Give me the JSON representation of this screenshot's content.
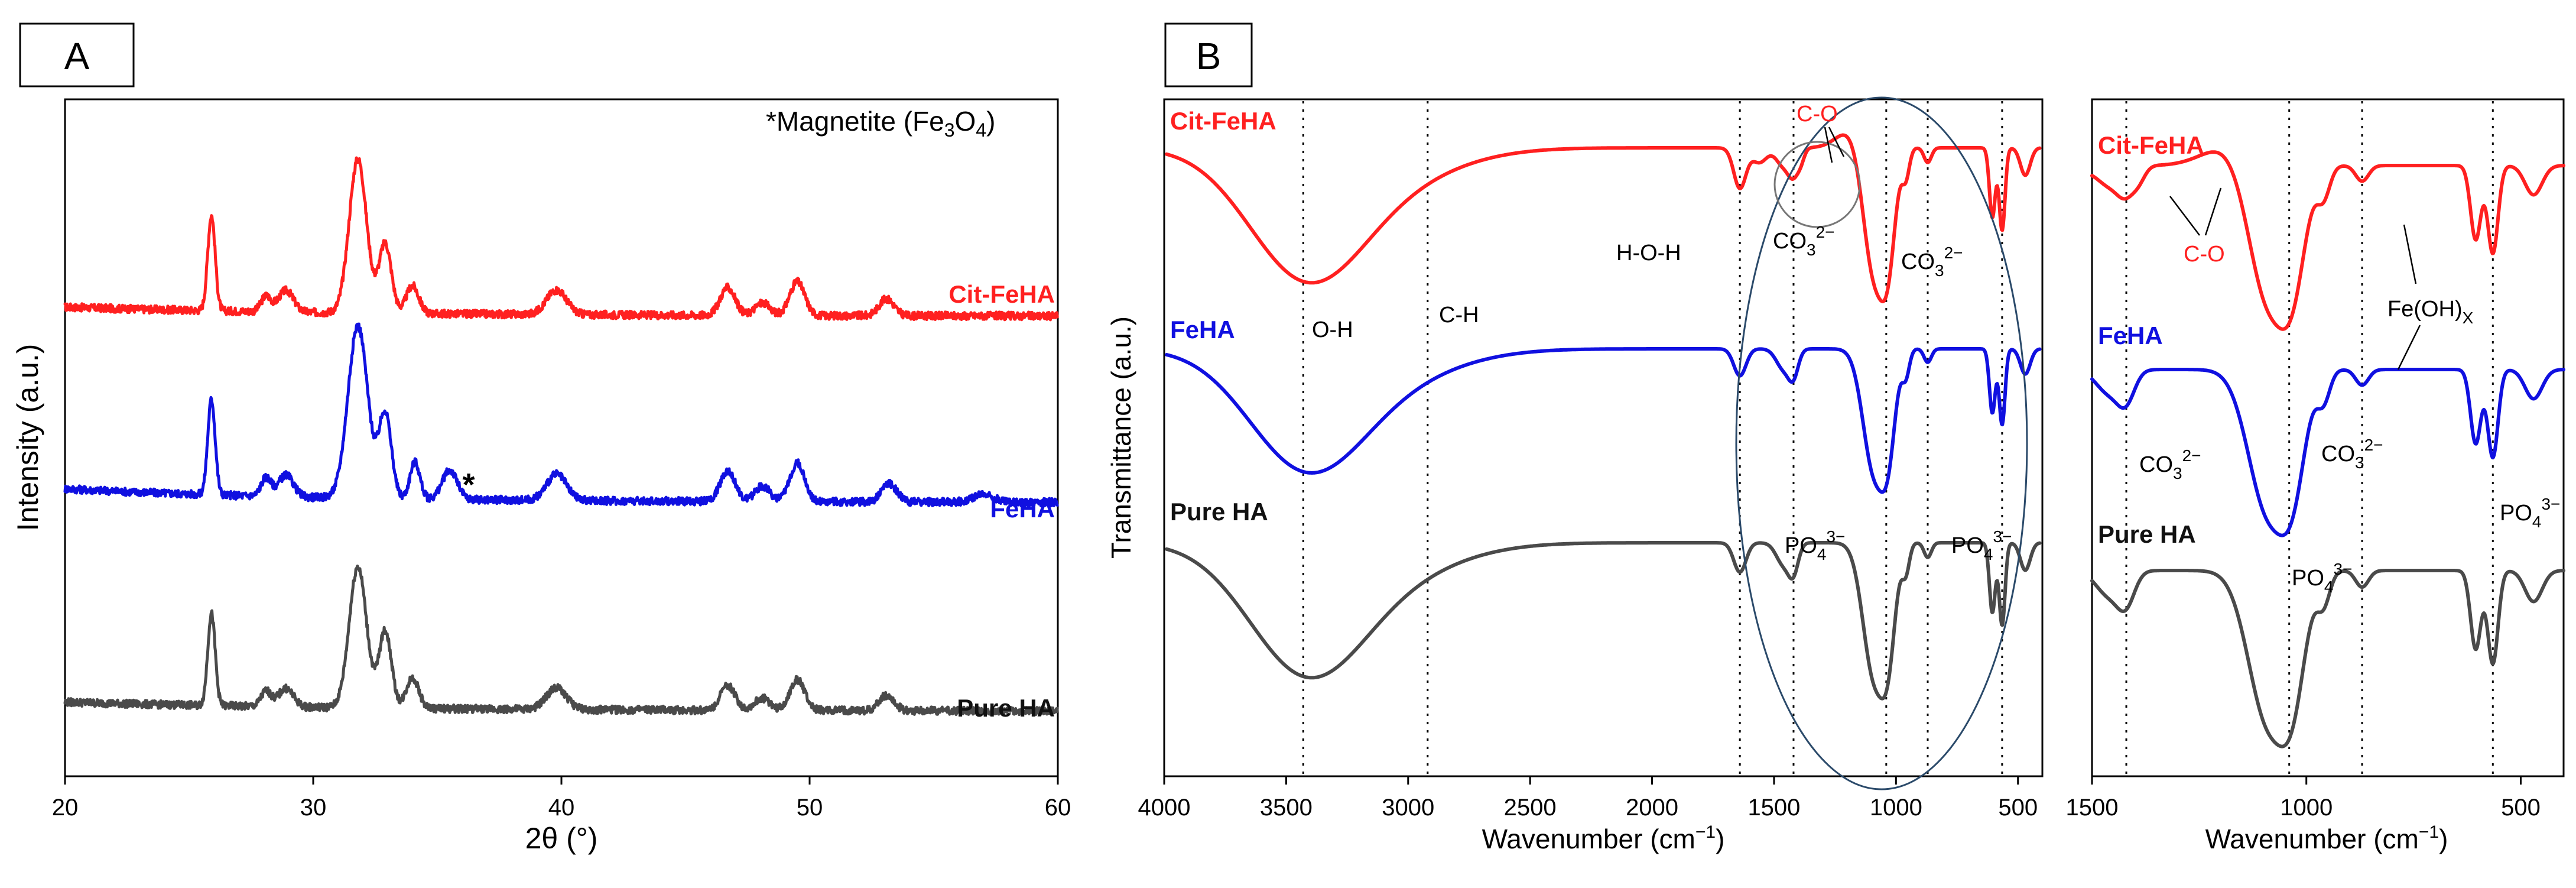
{
  "colors": {
    "cit": "#ff2020",
    "fe": "#1010e0",
    "pure": "#4a4a4a",
    "ellipse": "#2b4a6a"
  },
  "chart_data": [
    {
      "panel": "A",
      "type": "line",
      "xlabel": "2θ (°)",
      "ylabel": "Intensity (a.u.)",
      "xlim": [
        20,
        60
      ],
      "xticks": [
        20,
        30,
        40,
        50,
        60
      ],
      "annotation_prefix": "*Magnetite (Fe",
      "annotation_sub1": "3",
      "annotation_mid": "O",
      "annotation_sub2": "4",
      "annotation_suffix": ")",
      "marker": "*",
      "marker_x": 35.5,
      "series": [
        {
          "name": "Cit-FeHA",
          "offset": 2.0,
          "scale": 1.0,
          "peaks": [
            [
              25.9,
              0.62,
              0.15
            ],
            [
              28.1,
              0.1,
              0.2
            ],
            [
              28.9,
              0.14,
              0.3
            ],
            [
              31.8,
              1.0,
              0.35
            ],
            [
              32.9,
              0.45,
              0.25
            ],
            [
              34.0,
              0.18,
              0.25
            ],
            [
              39.8,
              0.16,
              0.4
            ],
            [
              46.7,
              0.18,
              0.3
            ],
            [
              48.1,
              0.08,
              0.3
            ],
            [
              49.5,
              0.22,
              0.3
            ],
            [
              53.1,
              0.11,
              0.3
            ]
          ]
        },
        {
          "name": "FeHA",
          "offset": 1.0,
          "scale": 1.0,
          "peaks": [
            [
              25.9,
              0.62,
              0.15
            ],
            [
              28.1,
              0.12,
              0.2
            ],
            [
              28.9,
              0.14,
              0.3
            ],
            [
              31.8,
              1.12,
              0.4
            ],
            [
              32.9,
              0.55,
              0.25
            ],
            [
              34.1,
              0.24,
              0.2
            ],
            [
              35.5,
              0.19,
              0.3
            ],
            [
              39.8,
              0.17,
              0.4
            ],
            [
              46.7,
              0.2,
              0.3
            ],
            [
              48.1,
              0.1,
              0.3
            ],
            [
              49.5,
              0.25,
              0.3
            ],
            [
              53.2,
              0.12,
              0.3
            ],
            [
              57.0,
              0.05,
              0.4
            ]
          ]
        },
        {
          "name": "Pure HA",
          "offset": 0.0,
          "scale": 1.0,
          "peaks": [
            [
              25.9,
              0.6,
              0.15
            ],
            [
              28.1,
              0.1,
              0.2
            ],
            [
              28.9,
              0.12,
              0.3
            ],
            [
              31.8,
              0.92,
              0.35
            ],
            [
              32.9,
              0.5,
              0.25
            ],
            [
              34.0,
              0.2,
              0.25
            ],
            [
              39.8,
              0.14,
              0.4
            ],
            [
              46.7,
              0.16,
              0.3
            ],
            [
              48.1,
              0.08,
              0.3
            ],
            [
              49.5,
              0.2,
              0.3
            ],
            [
              53.1,
              0.1,
              0.3
            ]
          ]
        }
      ]
    },
    {
      "panel": "B",
      "type": "line",
      "xlabel_main": "Wavenumber (cm",
      "xlabel_sup": "−1",
      "xlabel_close": ")",
      "ylabel": "Transmittance (a.u.)",
      "xlim": [
        4000,
        400
      ],
      "xticks": [
        4000,
        3500,
        3000,
        2500,
        2000,
        1500,
        1000,
        500
      ],
      "reference_lines_cm1": [
        3430,
        2920,
        1640,
        1420,
        1040,
        870,
        565
      ],
      "band_labels": [
        {
          "text": "O-H"
        },
        {
          "text": "C-H"
        },
        {
          "text": "H-O-H"
        },
        {
          "text": "C-O"
        },
        {
          "text": "CO",
          "sub": "3",
          "sup": "2−"
        },
        {
          "text": "CO",
          "sub": "3",
          "sup": "2−"
        },
        {
          "text": "PO",
          "sub": "4",
          "sup": "3−"
        },
        {
          "text": "PO",
          "sub": "4",
          "sup": "3−"
        }
      ],
      "series": [
        {
          "name": "Cit-FeHA"
        },
        {
          "name": "FeHA"
        },
        {
          "name": "Pure HA"
        }
      ]
    },
    {
      "panel": "B-inset",
      "type": "line",
      "xlabel_main": "Wavenumber (cm",
      "xlabel_sup": "−1",
      "xlabel_close": ")",
      "xlim": [
        1500,
        400
      ],
      "xticks": [
        1500,
        1000,
        500
      ],
      "reference_lines_cm1": [
        1420,
        1040,
        870,
        565
      ],
      "band_labels": [
        {
          "text": "C-O"
        },
        {
          "text": "Fe(OH)",
          "sub": "X"
        },
        {
          "text": "CO",
          "sub": "3",
          "sup": "2−"
        },
        {
          "text": "CO",
          "sub": "3",
          "sup": "2−"
        },
        {
          "text": "PO",
          "sub": "4",
          "sup": "3−"
        },
        {
          "text": "PO",
          "sub": "4",
          "sup": "3−"
        }
      ],
      "series": [
        {
          "name": "Cit-FeHA"
        },
        {
          "name": "FeHA"
        },
        {
          "name": "Pure HA"
        }
      ]
    }
  ],
  "panel_labels": {
    "a": "A",
    "b": "B"
  }
}
